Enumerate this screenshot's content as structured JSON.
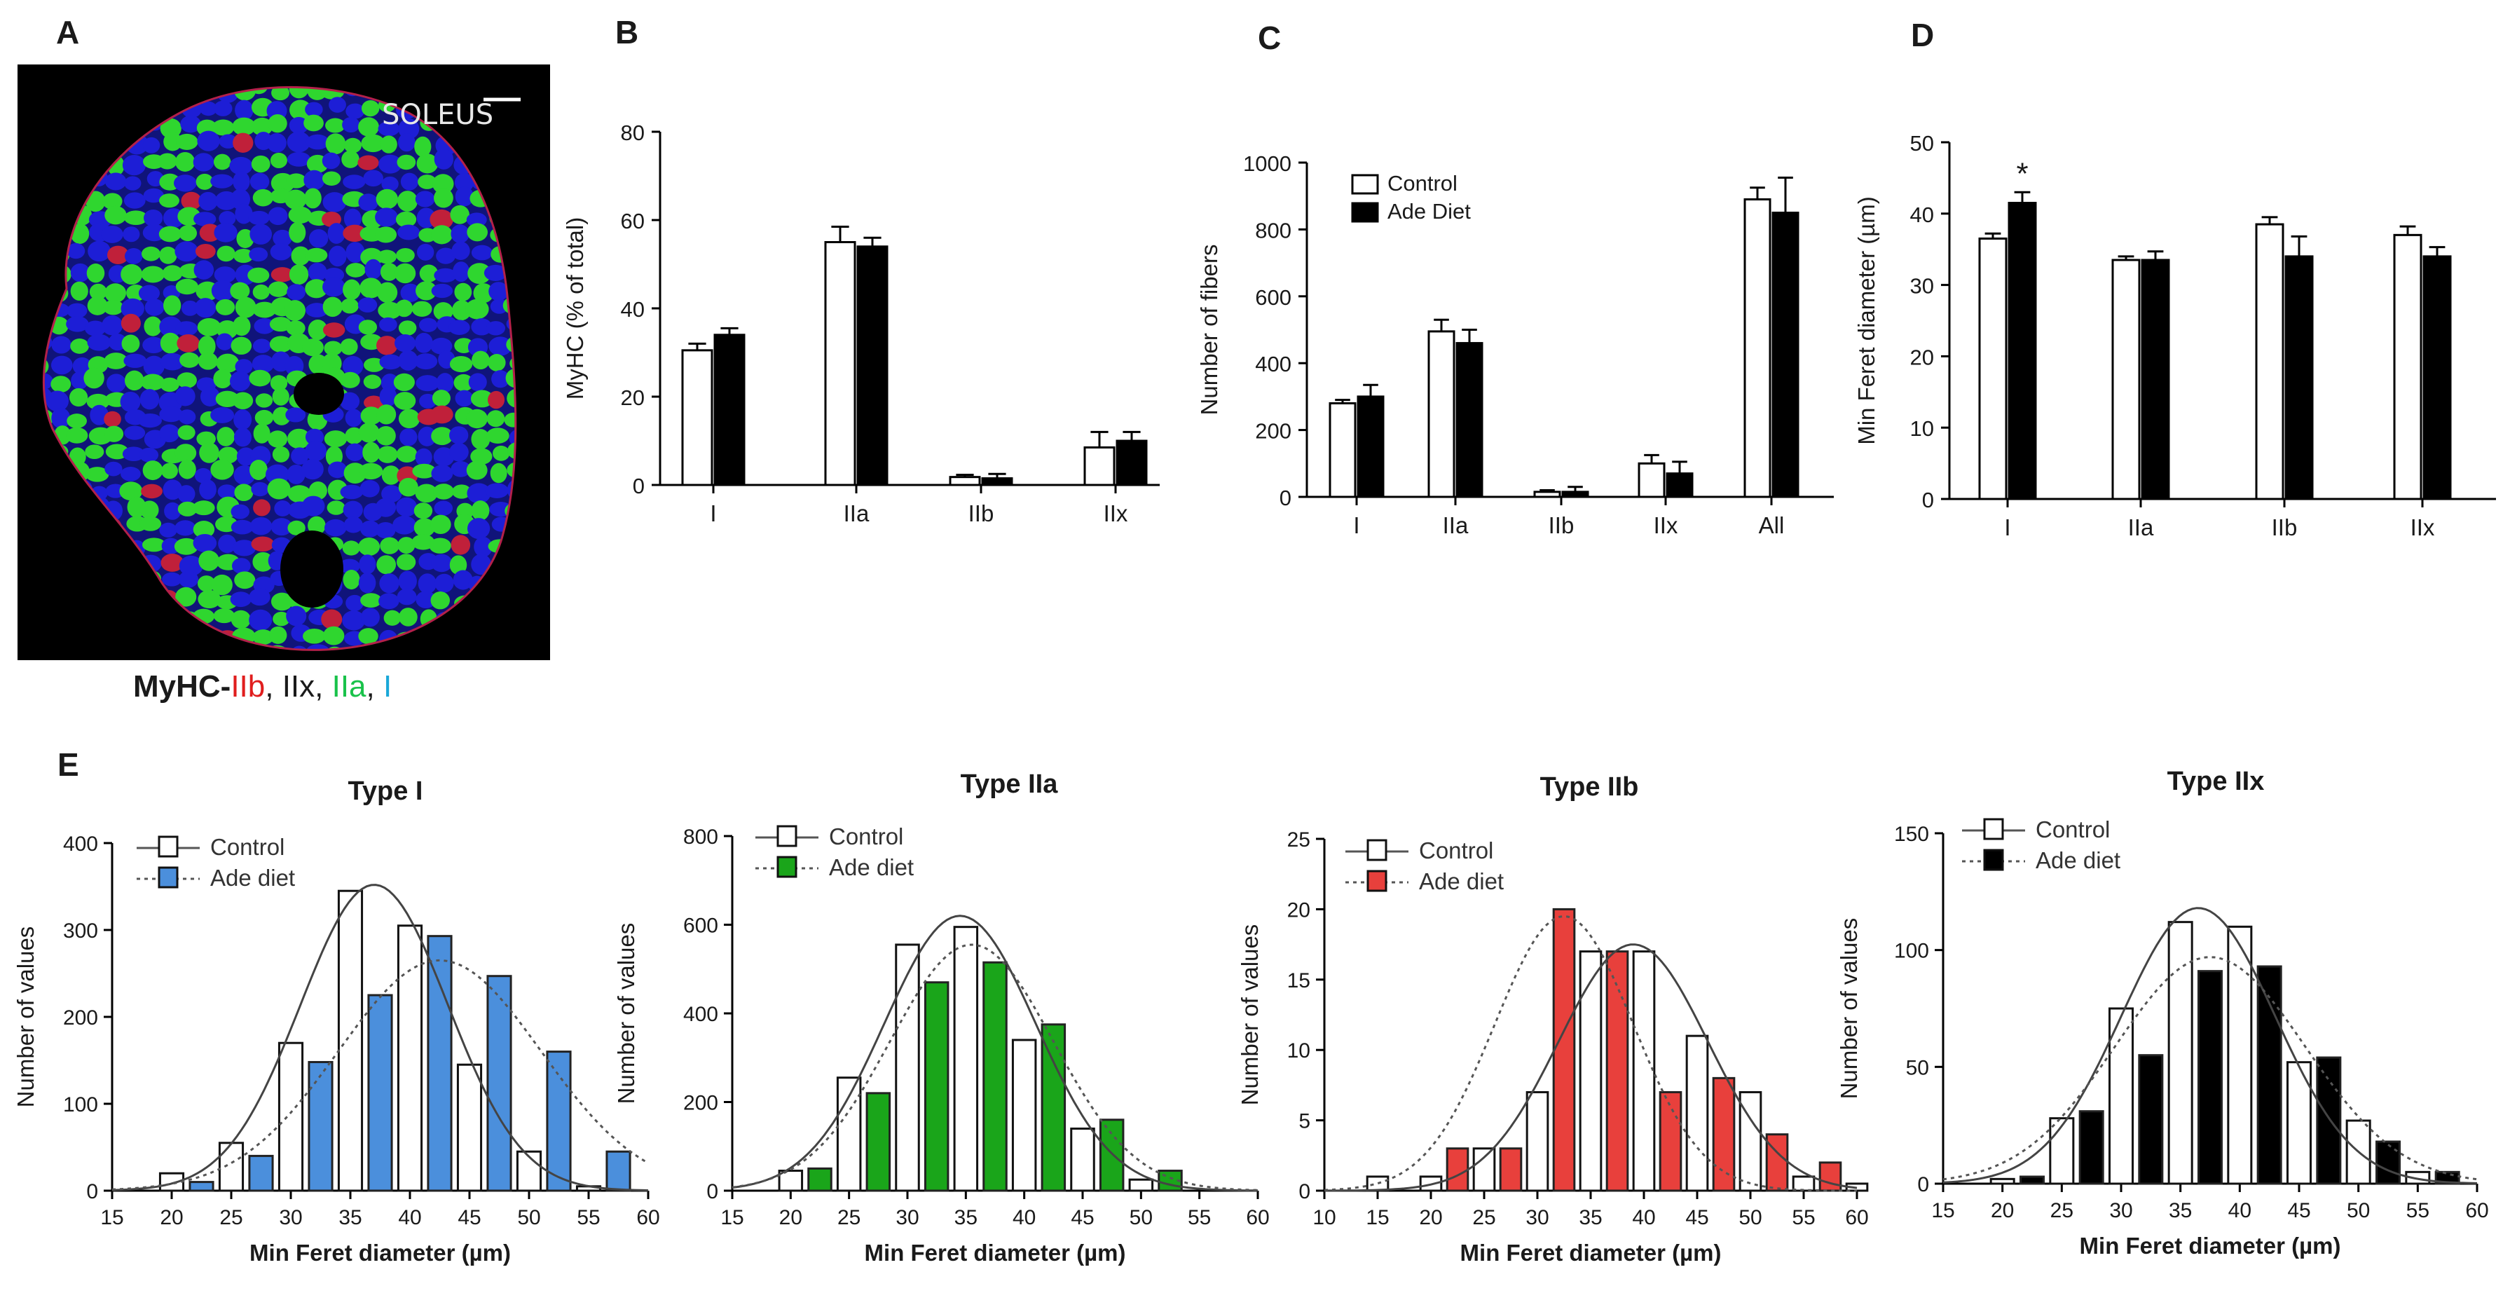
{
  "panel_letters": {
    "a": "A",
    "b": "B",
    "c": "C",
    "d": "D",
    "e": "E"
  },
  "micrograph": {
    "label": "SOLEUS",
    "caption": {
      "prefix": "MyHC-",
      "iib": "IIb",
      "sep1": ", ",
      "iix": "IIx",
      "sep2": ", ",
      "iia": "IIa",
      "sep3": ", ",
      "i": "I"
    }
  },
  "colors": {
    "blue": "#4b8fdc",
    "green": "#1aa51a",
    "red": "#e8403c",
    "black": "#000000",
    "tissue_green": "#2fd62f",
    "tissue_blue": "#1d1ed6",
    "tissue_red": "#c0203a"
  },
  "legend": {
    "control": "Control",
    "ade_diet": "Ade Diet",
    "ade_diet_lower": "Ade diet"
  },
  "chart_data": [
    {
      "id": "B",
      "type": "bar",
      "title": "",
      "ylabel": "MyHC (% of total)",
      "xlabel": "",
      "ylim": [
        0,
        80
      ],
      "yticks": [
        0,
        20,
        40,
        60,
        80
      ],
      "categories": [
        "I",
        "IIa",
        "IIb",
        "IIx"
      ],
      "series": [
        {
          "name": "Control",
          "values": [
            30.5,
            55,
            1.8,
            8.5
          ],
          "errors": [
            1.5,
            3.5,
            0.5,
            3.5
          ]
        },
        {
          "name": "Ade Diet",
          "values": [
            34,
            54,
            1.5,
            10
          ],
          "errors": [
            1.5,
            2,
            1,
            2
          ]
        }
      ]
    },
    {
      "id": "C",
      "type": "bar",
      "title": "",
      "ylabel": "Number of fibers",
      "xlabel": "",
      "ylim": [
        0,
        1000
      ],
      "yticks": [
        0,
        200,
        400,
        600,
        800,
        1000
      ],
      "categories": [
        "I",
        "IIa",
        "IIb",
        "IIx",
        "All"
      ],
      "series": [
        {
          "name": "Control",
          "values": [
            280,
            495,
            15,
            100,
            890
          ],
          "errors": [
            10,
            35,
            5,
            25,
            35
          ]
        },
        {
          "name": "Ade Diet",
          "values": [
            300,
            460,
            15,
            70,
            850
          ],
          "errors": [
            35,
            40,
            15,
            35,
            105
          ]
        }
      ]
    },
    {
      "id": "D",
      "type": "bar",
      "title": "",
      "ylabel": "Min Feret diameter (µm)",
      "xlabel": "",
      "ylim": [
        0,
        50
      ],
      "yticks": [
        0,
        10,
        20,
        30,
        40,
        50
      ],
      "categories": [
        "I",
        "IIa",
        "IIb",
        "IIx"
      ],
      "series": [
        {
          "name": "Control",
          "values": [
            36.5,
            33.5,
            38.5,
            37
          ],
          "errors": [
            0.7,
            0.5,
            1,
            1.2
          ]
        },
        {
          "name": "Ade Diet",
          "values": [
            41.5,
            33.5,
            34,
            34
          ],
          "errors": [
            1.5,
            1.2,
            2.8,
            1.3
          ]
        }
      ],
      "annotations": [
        {
          "text": "*",
          "category": "I",
          "series": "Ade Diet"
        }
      ]
    },
    {
      "id": "E1",
      "type": "bar",
      "title": "Type I",
      "xlabel": "Min Feret diameter (µm)",
      "ylabel": "Number of values",
      "xlim": [
        15,
        60
      ],
      "xticks": [
        15,
        20,
        25,
        30,
        35,
        40,
        45,
        50,
        55,
        60
      ],
      "ylim": [
        0,
        400
      ],
      "yticks": [
        0,
        100,
        200,
        300,
        400
      ],
      "fill_color": "#4b8fdc",
      "series": [
        {
          "name": "Control",
          "x": [
            20,
            25,
            30,
            35,
            40,
            45,
            50,
            55
          ],
          "values": [
            20,
            55,
            170,
            345,
            305,
            145,
            45,
            5
          ]
        },
        {
          "name": "Ade diet",
          "x": [
            22.5,
            27.5,
            32.5,
            37.5,
            42.5,
            47.5,
            52.5,
            57.5
          ],
          "values": [
            10,
            40,
            148,
            225,
            293,
            247,
            160,
            45
          ]
        }
      ],
      "fits": [
        {
          "name": "Control",
          "amplitude": 352,
          "mean": 37,
          "sd": 6.2
        },
        {
          "name": "Ade diet",
          "amplitude": 265,
          "mean": 42.5,
          "sd": 8.5
        }
      ]
    },
    {
      "id": "E2",
      "type": "bar",
      "title": "Type IIa",
      "xlabel": "Min Feret diameter (µm)",
      "ylabel": "Number of values",
      "xlim": [
        15,
        60
      ],
      "xticks": [
        15,
        20,
        25,
        30,
        35,
        40,
        45,
        50,
        55,
        60
      ],
      "ylim": [
        0,
        800
      ],
      "yticks": [
        0,
        200,
        400,
        600,
        800
      ],
      "fill_color": "#1aa51a",
      "series": [
        {
          "name": "Control",
          "x": [
            20,
            25,
            30,
            35,
            40,
            45,
            50
          ],
          "values": [
            45,
            255,
            555,
            595,
            340,
            140,
            25
          ]
        },
        {
          "name": "Ade diet",
          "x": [
            22.5,
            27.5,
            32.5,
            37.5,
            42.5,
            47.5,
            52.5
          ],
          "values": [
            50,
            220,
            470,
            515,
            375,
            160,
            45
          ]
        }
      ],
      "fits": [
        {
          "name": "Control",
          "amplitude": 620,
          "mean": 34.5,
          "sd": 6.5
        },
        {
          "name": "Ade diet",
          "amplitude": 555,
          "mean": 35.5,
          "sd": 7
        }
      ]
    },
    {
      "id": "E3",
      "type": "bar",
      "title": "Type IIb",
      "xlabel": "Min Feret diameter (µm)",
      "ylabel": "Number of values",
      "xlim": [
        10,
        60
      ],
      "xticks": [
        10,
        15,
        20,
        25,
        30,
        35,
        40,
        45,
        50,
        55,
        60
      ],
      "ylim": [
        0,
        25
      ],
      "yticks": [
        0,
        5,
        10,
        15,
        20,
        25
      ],
      "fill_color": "#e8403c",
      "series": [
        {
          "name": "Control",
          "x": [
            15,
            20,
            25,
            30,
            35,
            40,
            45,
            50,
            55,
            60
          ],
          "values": [
            1,
            1,
            3,
            7,
            17,
            17,
            11,
            7,
            1,
            0.5
          ]
        },
        {
          "name": "Ade diet",
          "x": [
            22.5,
            27.5,
            32.5,
            37.5,
            42.5,
            47.5,
            52.5,
            57.5
          ],
          "values": [
            3,
            3,
            20,
            17,
            7,
            8,
            4,
            2
          ]
        }
      ],
      "fits": [
        {
          "name": "Control",
          "amplitude": 17.5,
          "mean": 39,
          "sd": 7
        },
        {
          "name": "Ade diet",
          "amplitude": 19.5,
          "mean": 32.5,
          "sd": 6.5
        }
      ]
    },
    {
      "id": "E4",
      "type": "bar",
      "title": "Type IIx",
      "xlabel": "Min Feret diameter (µm)",
      "ylabel": "Number of values",
      "xlim": [
        15,
        60
      ],
      "xticks": [
        15,
        20,
        25,
        30,
        35,
        40,
        45,
        50,
        55,
        60
      ],
      "ylim": [
        0,
        150
      ],
      "yticks": [
        0,
        50,
        100,
        150
      ],
      "fill_color": "#000000",
      "series": [
        {
          "name": "Control",
          "x": [
            20,
            25,
            30,
            35,
            40,
            45,
            50,
            55
          ],
          "values": [
            2,
            28,
            75,
            112,
            110,
            52,
            27,
            5
          ]
        },
        {
          "name": "Ade diet",
          "x": [
            22.5,
            27.5,
            32.5,
            37.5,
            42.5,
            47.5,
            52.5,
            57.5
          ],
          "values": [
            3,
            31,
            55,
            91,
            93,
            54,
            18,
            5
          ]
        }
      ],
      "fits": [
        {
          "name": "Control",
          "amplitude": 118,
          "mean": 36.5,
          "sd": 6.5
        },
        {
          "name": "Ade diet",
          "amplitude": 97,
          "mean": 37.5,
          "sd": 8
        }
      ]
    }
  ]
}
